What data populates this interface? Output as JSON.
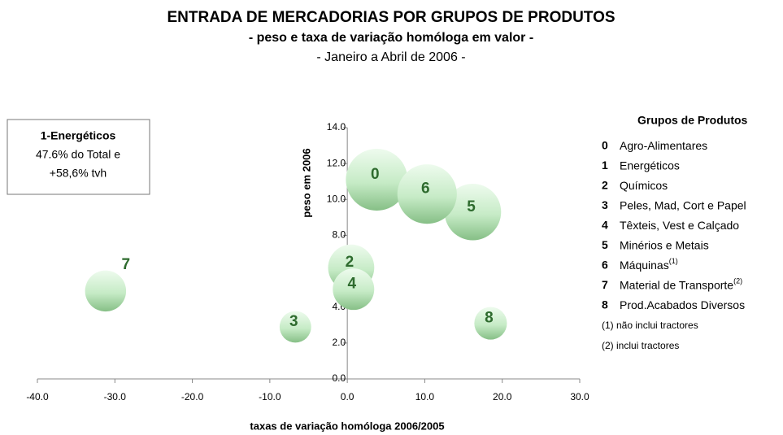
{
  "chart_data": {
    "type": "bubble",
    "title": "ENTRADA DE MERCADORIAS POR GRUPOS DE PRODUTOS",
    "subtitle": "- peso e taxa de variação homóloga em valor -",
    "period": "- Janeiro a Abril de 2006 -",
    "xlabel": "taxas de variação homóloga 2006/2005",
    "ylabel": "peso em 2006",
    "labels": [
      "0",
      "2",
      "3",
      "4",
      "5",
      "6",
      "7",
      "8"
    ],
    "x": [
      3.8,
      0.5,
      -6.7,
      0.8,
      16.2,
      10.3,
      -31.2,
      18.5
    ],
    "y": [
      11.1,
      6.2,
      2.9,
      5.0,
      9.3,
      10.3,
      4.9,
      3.1
    ],
    "color": "#2e6b2e",
    "xlim": [
      -40,
      30
    ],
    "ylim": [
      0,
      14
    ],
    "xticks": [
      {
        "value": -40,
        "label": "-40.0"
      },
      {
        "value": -30,
        "label": "-30.0"
      },
      {
        "value": -20,
        "label": "-20.0"
      },
      {
        "value": -10,
        "label": "-10.0"
      },
      {
        "value": 0,
        "label": "0.0"
      },
      {
        "value": 10,
        "label": "10.0"
      },
      {
        "value": 20,
        "label": "20.0"
      },
      {
        "value": 30,
        "label": "30.0"
      }
    ],
    "yticks": [
      {
        "value": 0,
        "label": "0.0"
      },
      {
        "value": 2,
        "label": "2.0"
      },
      {
        "value": 4,
        "label": "4.0"
      },
      {
        "value": 6,
        "label": "6.0"
      },
      {
        "value": 8,
        "label": "8.0"
      },
      {
        "value": 10,
        "label": "10.0"
      },
      {
        "value": 12,
        "label": "12.0"
      },
      {
        "value": 14,
        "label": "14.0"
      }
    ],
    "annotation": [
      "1-Energéticos",
      "47.6% do Total e",
      "+58,6% tvh"
    ],
    "legend": {
      "title": "Grupos de Produtos",
      "items": [
        {
          "code": "0",
          "name": "Agro-Alimentares"
        },
        {
          "code": "1",
          "name": "Energéticos"
        },
        {
          "code": "2",
          "name": "Químicos"
        },
        {
          "code": "3",
          "name": "Peles, Mad, Cort e Papel"
        },
        {
          "code": "4",
          "name": "Têxteis, Vest e Calçado"
        },
        {
          "code": "5",
          "name": "Minérios e Metais"
        },
        {
          "code": "6",
          "name": "Máquinas",
          "note": "(1)"
        },
        {
          "code": "7",
          "name": "Material de Transporte",
          "note": "(2)"
        },
        {
          "code": "8",
          "name": "Prod.Acabados Diversos"
        }
      ],
      "notes": [
        "(1) não inclui tractores",
        "(2) inclui tractores"
      ]
    }
  }
}
